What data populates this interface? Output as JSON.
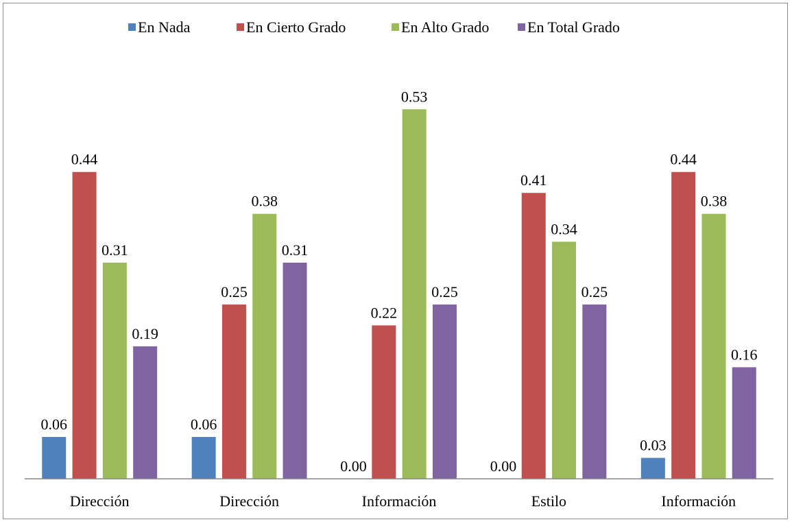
{
  "chart_data": {
    "type": "bar",
    "title": "",
    "xlabel": "",
    "ylabel": "",
    "ylim": [
      0,
      0.6
    ],
    "grid": false,
    "legend_position": "top",
    "categories": [
      "Dirección",
      "Dirección",
      "Información",
      "Estilo",
      "Información"
    ],
    "series": [
      {
        "name": "En Nada",
        "color": "#4f81bd",
        "values": [
          0.06,
          0.06,
          0.0,
          0.0,
          0.03
        ],
        "labels": [
          "0.06",
          "0.06",
          "0.00",
          "0.00",
          "0.03"
        ]
      },
      {
        "name": "En Cierto Grado",
        "color": "#c0504d",
        "values": [
          0.44,
          0.25,
          0.22,
          0.41,
          0.44
        ],
        "labels": [
          "0.44",
          "0.25",
          "0.22",
          "0.41",
          "0.44"
        ]
      },
      {
        "name": "En Alto Grado",
        "color": "#9bbb59",
        "values": [
          0.31,
          0.38,
          0.53,
          0.34,
          0.38
        ],
        "labels": [
          "0.31",
          "0.38",
          "0.53",
          "0.34",
          "0.38"
        ]
      },
      {
        "name": "En Total Grado",
        "color": "#8064a2",
        "values": [
          0.19,
          0.31,
          0.25,
          0.25,
          0.16
        ],
        "labels": [
          "0.19",
          "0.31",
          "0.25",
          "0.25",
          "0.16"
        ]
      }
    ]
  }
}
